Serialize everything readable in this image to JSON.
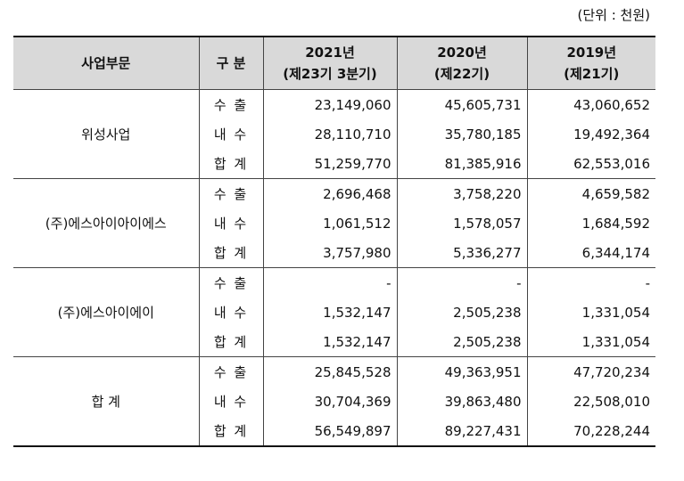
{
  "unit": "(단위 : 천원)",
  "headers": {
    "segment": "사업부문",
    "kind": "구 분",
    "y2021_line1": "2021년",
    "y2021_line2": "(제23기 3분기)",
    "y2020_line1": "2020년",
    "y2020_line2": "(제22기)",
    "y2019_line1": "2019년",
    "y2019_line2": "(제21기)"
  },
  "groups": [
    {
      "name": "위성사업",
      "rows": [
        {
          "kind": "수 출",
          "y2021": "23,149,060",
          "y2020": "45,605,731",
          "y2019": "43,060,652"
        },
        {
          "kind": "내 수",
          "y2021": "28,110,710",
          "y2020": "35,780,185",
          "y2019": "19,492,364"
        },
        {
          "kind": "합 계",
          "y2021": "51,259,770",
          "y2020": "81,385,916",
          "y2019": "62,553,016"
        }
      ]
    },
    {
      "name": "(주)에스아이아이에스",
      "rows": [
        {
          "kind": "수 출",
          "y2021": "2,696,468",
          "y2020": "3,758,220",
          "y2019": "4,659,582"
        },
        {
          "kind": "내 수",
          "y2021": "1,061,512",
          "y2020": "1,578,057",
          "y2019": "1,684,592"
        },
        {
          "kind": "합 계",
          "y2021": "3,757,980",
          "y2020": "5,336,277",
          "y2019": "6,344,174"
        }
      ]
    },
    {
      "name": "(주)에스아이에이",
      "rows": [
        {
          "kind": "수 출",
          "y2021": "-",
          "y2020": "-",
          "y2019": "-"
        },
        {
          "kind": "내 수",
          "y2021": "1,532,147",
          "y2020": "2,505,238",
          "y2019": "1,331,054"
        },
        {
          "kind": "합 계",
          "y2021": "1,532,147",
          "y2020": "2,505,238",
          "y2019": "1,331,054"
        }
      ]
    },
    {
      "name": "합 계",
      "rows": [
        {
          "kind": "수 출",
          "y2021": "25,845,528",
          "y2020": "49,363,951",
          "y2019": "47,720,234"
        },
        {
          "kind": "내 수",
          "y2021": "30,704,369",
          "y2020": "39,863,480",
          "y2019": "22,508,010"
        },
        {
          "kind": "합 계",
          "y2021": "56,549,897",
          "y2020": "89,227,431",
          "y2019": "70,228,244"
        }
      ]
    }
  ]
}
